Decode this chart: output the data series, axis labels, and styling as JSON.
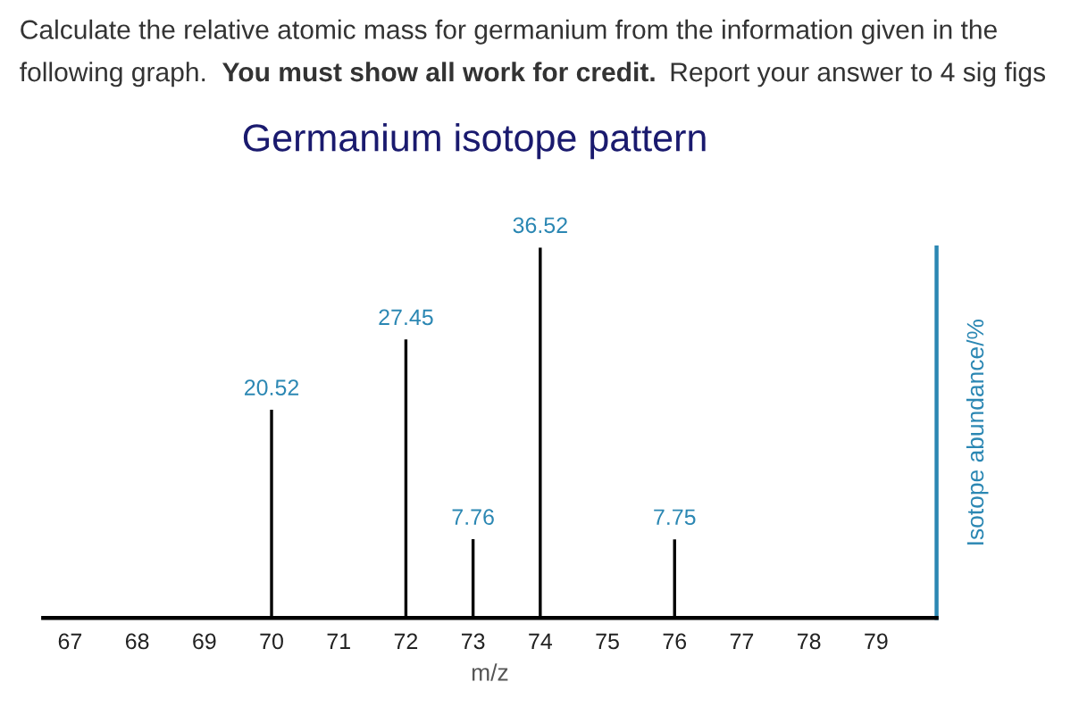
{
  "chart_data": {
    "type": "bar",
    "title": "Germanium isotope pattern",
    "annotations": [
      "Calculate the relative atomic mass for germanium from the information given in the",
      "following graph.",
      "You must show all work for credit.",
      "Report your answer to 4 sig figs"
    ],
    "data_labels": true,
    "xlabel": "m/z",
    "ylabel": "Isotope abundance/%",
    "x": [
      70,
      72,
      73,
      74,
      76
    ],
    "values": [
      20.52,
      27.45,
      7.76,
      36.52,
      7.75
    ],
    "color": "#000000",
    "xlim": [
      66.6,
      79.9
    ],
    "xticks": [
      67,
      68,
      69,
      70,
      71,
      72,
      73,
      74,
      75,
      76,
      77,
      78,
      79
    ],
    "ylim": [
      0,
      36.52
    ],
    "grid": false,
    "legend": false
  }
}
